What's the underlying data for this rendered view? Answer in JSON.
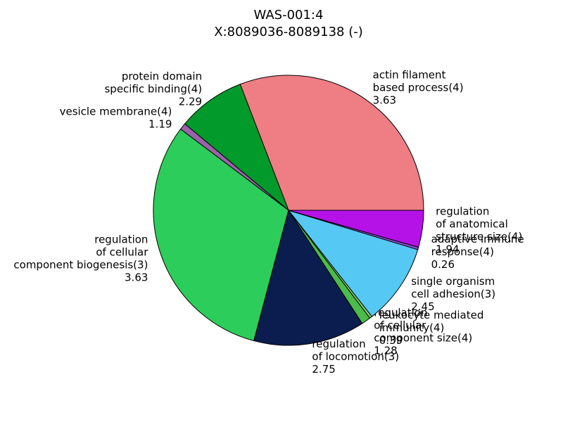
{
  "chart_data": {
    "type": "pie",
    "title": [
      "WAS-001:4",
      "X:8089036-8089138 (-)"
    ],
    "labels": [
      [
        "actin filament",
        "based process(4)"
      ],
      [
        "protein domain",
        "specific binding(4)"
      ],
      [
        "vesicle membrane(4)"
      ],
      [
        "regulation",
        "of cellular",
        "component biogenesis(3)"
      ],
      [
        "regulation",
        "of locomotion(3)"
      ],
      [
        "regulation",
        "of cellular",
        "component size(4)"
      ],
      [
        "leukocyte mediated",
        "immunity(4)"
      ],
      [
        "single organism",
        "cell adhesion(3)"
      ],
      [
        "adaptive immune",
        "response(4)"
      ],
      [
        "regulation",
        "of anatomical",
        "structure size(4)"
      ]
    ],
    "scores": [
      3.63,
      2.29,
      1.19,
      3.63,
      2.75,
      1.28,
      0.39,
      2.45,
      0.26,
      1.94
    ],
    "values": [
      30.8,
      8.1,
      0.8,
      31.1,
      13.3,
      1.1,
      0.3,
      9.7,
      0.3,
      4.4
    ],
    "colors": [
      "#ee7e84",
      "#029a2b",
      "#9a62a8",
      "#2ccd5a",
      "#0b1d4e",
      "#4cbb4a",
      "#7fd36b",
      "#56c8f4",
      "#8a4fd8",
      "#b512e8"
    ],
    "start_angle": 0,
    "counterclock": true
  }
}
